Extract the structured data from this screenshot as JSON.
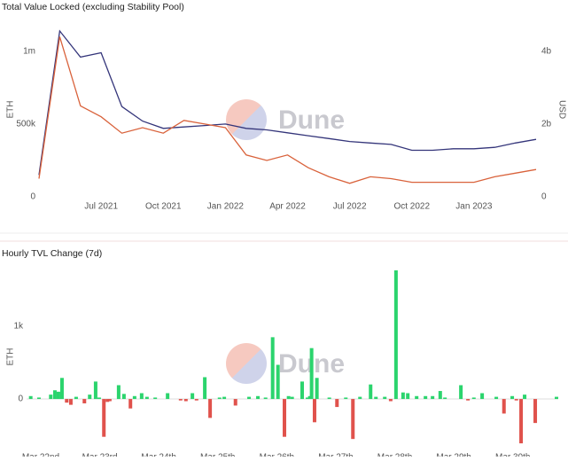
{
  "chart_data": [
    {
      "type": "line",
      "title": "Total Value Locked (excluding Stability Pool)",
      "watermark": "Dune",
      "ylabel": "ETH",
      "y2label": "USD",
      "x": [
        "2021-04",
        "2021-05",
        "2021-06",
        "2021-07",
        "2021-08",
        "2021-09",
        "2021-10",
        "2021-11",
        "2021-12",
        "2022-01",
        "2022-02",
        "2022-03",
        "2022-04",
        "2022-05",
        "2022-06",
        "2022-07",
        "2022-08",
        "2022-09",
        "2022-10",
        "2022-11",
        "2022-12",
        "2023-01",
        "2023-02",
        "2023-03",
        "2023-04"
      ],
      "xlim": [
        "2021-04",
        "2023-04"
      ],
      "xticks": [
        {
          "value": "2021-07",
          "label": "Jul 2021"
        },
        {
          "value": "2021-10",
          "label": "Oct 2021"
        },
        {
          "value": "2022-01",
          "label": "Jan 2022"
        },
        {
          "value": "2022-04",
          "label": "Apr 2022"
        },
        {
          "value": "2022-07",
          "label": "Jul 2022"
        },
        {
          "value": "2022-10",
          "label": "Oct 2022"
        },
        {
          "value": "2023-01",
          "label": "Jan 2023"
        }
      ],
      "ylim": [
        0,
        1200000
      ],
      "yticks": [
        0,
        {
          "value": 500000,
          "label": "500k"
        },
        {
          "value": 1000000,
          "label": "1m"
        }
      ],
      "y2lim": [
        0,
        4800000000
      ],
      "y2ticks": [
        0,
        {
          "value": 2000000000,
          "label": "2b"
        },
        {
          "value": 4000000000,
          "label": "4b"
        }
      ],
      "series": [
        {
          "name": "ETH",
          "color": "#34357a",
          "values": [
            150000,
            1140000,
            960000,
            990000,
            620000,
            520000,
            470000,
            480000,
            490000,
            500000,
            470000,
            460000,
            440000,
            420000,
            400000,
            380000,
            370000,
            360000,
            320000,
            320000,
            330000,
            330000,
            340000,
            370000,
            395000
          ]
        },
        {
          "name": "USD",
          "color": "#d9623b",
          "axis": "y2",
          "values": [
            500000000,
            4400000000,
            2500000000,
            2200000000,
            1750000000,
            1900000000,
            1750000000,
            2100000000,
            2000000000,
            1900000000,
            1150000000,
            1000000000,
            1150000000,
            800000000,
            550000000,
            370000000,
            550000000,
            500000000,
            400000000,
            400000000,
            400000000,
            400000000,
            550000000,
            650000000,
            750000000
          ]
        }
      ]
    },
    {
      "type": "bar",
      "title": "Hourly TVL Change (7d)",
      "watermark": "Dune",
      "ylabel": "ETH",
      "positive_color": "#2bd46d",
      "negative_color": "#e0524c",
      "x": [
        21.83,
        21.97,
        22.17,
        22.24,
        22.3,
        22.36,
        22.44,
        22.51,
        22.6,
        22.74,
        22.83,
        22.93,
        22.99,
        23.07,
        23.13,
        23.17,
        23.32,
        23.41,
        23.52,
        23.59,
        23.71,
        23.8,
        23.94,
        24.15,
        24.37,
        24.46,
        24.57,
        24.64,
        24.78,
        24.87,
        25.03,
        25.11,
        25.3,
        25.53,
        25.68,
        25.81,
        25.93,
        26.02,
        26.13,
        26.2,
        26.26,
        26.43,
        26.52,
        26.56,
        26.59,
        26.64,
        26.68,
        26.89,
        27.02,
        27.17,
        27.29,
        27.41,
        27.59,
        27.68,
        27.83,
        27.93,
        28.02,
        28.14,
        28.22,
        28.37,
        28.52,
        28.64,
        28.77,
        28.85,
        29.12,
        29.24,
        29.34,
        29.48,
        29.72,
        29.85,
        29.99,
        30.06,
        30.14,
        30.2,
        30.38,
        30.74
      ],
      "values": [
        40,
        20,
        60,
        120,
        100,
        290,
        -50,
        -80,
        30,
        -60,
        60,
        240,
        20,
        -520,
        -40,
        -30,
        190,
        70,
        -130,
        40,
        80,
        30,
        20,
        80,
        -20,
        -30,
        80,
        -20,
        300,
        -260,
        20,
        30,
        -90,
        30,
        40,
        20,
        850,
        470,
        -520,
        40,
        30,
        240,
        20,
        40,
        700,
        -320,
        290,
        20,
        -110,
        20,
        -550,
        30,
        200,
        30,
        30,
        -30,
        1770,
        90,
        80,
        40,
        40,
        40,
        110,
        20,
        190,
        -20,
        20,
        80,
        30,
        -200,
        40,
        -20,
        -610,
        60,
        -330,
        30
      ],
      "xlim": [
        21.76,
        30.77
      ],
      "xticks": [
        {
          "value": 22,
          "label": "Mar 22nd"
        },
        {
          "value": 23,
          "label": "Mar 23rd"
        },
        {
          "value": 24,
          "label": "Mar 24th"
        },
        {
          "value": 25,
          "label": "Mar 25th"
        },
        {
          "value": 26,
          "label": "Mar 26th"
        },
        {
          "value": 27,
          "label": "Mar 27th"
        },
        {
          "value": 28,
          "label": "Mar 28th"
        },
        {
          "value": 29,
          "label": "Mar 29th"
        },
        {
          "value": 30,
          "label": "Mar 30th"
        }
      ],
      "ylim": [
        -670,
        1830
      ],
      "yticks": [
        0,
        {
          "value": 1000,
          "label": "1k"
        }
      ]
    }
  ]
}
